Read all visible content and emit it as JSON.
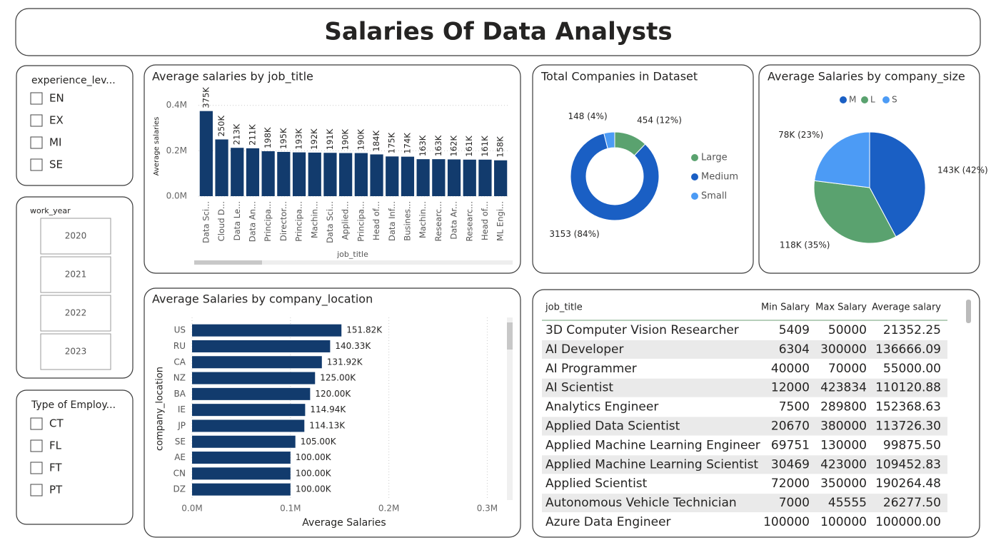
{
  "header": {
    "title": "Salaries Of Data Analysts"
  },
  "slicers": [
    {
      "title": "experience_lev...",
      "options": [
        "EN",
        "EX",
        "MI",
        "SE"
      ]
    },
    {
      "title": "work_year",
      "options": [
        "2020",
        "2021",
        "2022",
        "2023"
      ]
    },
    {
      "title": "Type of Employ...",
      "options": [
        "CT",
        "FL",
        "FT",
        "PT"
      ]
    }
  ],
  "chart_data": [
    {
      "type": "bar",
      "title": "Average salaries by job_title",
      "x_label": "job_title",
      "y_label": "Average salaries",
      "categories": [
        "Data Sci...",
        "Cloud D...",
        "Data Le...",
        "Data An...",
        "Principa...",
        "Director...",
        "Principa...",
        "Machin...",
        "Data Sci...",
        "Applied...",
        "Principa...",
        "Head of...",
        "Data Inf...",
        "Busines...",
        "Machin...",
        "Researc...",
        "Data Ar...",
        "Researc...",
        "Head of...",
        "ML Engi..."
      ],
      "values": [
        375000,
        250000,
        213000,
        211000,
        198000,
        195000,
        193000,
        192000,
        191000,
        190000,
        190000,
        184000,
        175000,
        174000,
        163000,
        163000,
        162000,
        161000,
        161000,
        158000
      ],
      "value_labels": [
        "375K",
        "250K",
        "213K",
        "211K",
        "198K",
        "195K",
        "193K",
        "192K",
        "191K",
        "190K",
        "190K",
        "184K",
        "175K",
        "174K",
        "163K",
        "163K",
        "162K",
        "161K",
        "161K",
        "158K"
      ],
      "color": "#123b6d",
      "ylim": [
        0,
        440000
      ],
      "yticks": [
        {
          "value": 0,
          "label": "0.0M"
        },
        {
          "value": 200000,
          "label": "0.2M"
        },
        {
          "value": 400000,
          "label": "0.4M"
        }
      ],
      "grid": true
    },
    {
      "type": "donut",
      "title": "Total Companies in Dataset",
      "categories": [
        "Large",
        "Medium",
        "Small"
      ],
      "values": [
        454,
        3153,
        148
      ],
      "value_labels": [
        "454 (12%)",
        "3153 (84%)",
        "148 (4%)"
      ],
      "colors": [
        "#5aa26f",
        "#1a5fc4",
        "#4c9bf5"
      ],
      "legend": "right"
    },
    {
      "type": "pie",
      "title": "Average Salaries by company_size",
      "categories": [
        "M",
        "L",
        "S"
      ],
      "values": [
        143000,
        118000,
        78000
      ],
      "value_labels": [
        "143K (42%)",
        "118K (35%)",
        "78K (23%)"
      ],
      "colors": [
        "#1a5fc4",
        "#5aa26f",
        "#4c9bf5"
      ],
      "legend": "top"
    },
    {
      "type": "hbar",
      "title": "Average Salaries by company_location",
      "x_label": "Average Salaries",
      "y_label": "company_location",
      "categories": [
        "US",
        "RU",
        "CA",
        "NZ",
        "BA",
        "IE",
        "JP",
        "SE",
        "AE",
        "CN",
        "DZ"
      ],
      "values": [
        151820,
        140330,
        131920,
        125000,
        120000,
        114940,
        114130,
        105000,
        100000,
        100000,
        100000
      ],
      "value_labels": [
        "151.82K",
        "140.33K",
        "131.92K",
        "125.00K",
        "120.00K",
        "114.94K",
        "114.13K",
        "105.00K",
        "100.00K",
        "100.00K",
        "100.00K"
      ],
      "color": "#123b6d",
      "xlim": [
        0,
        320000
      ],
      "xticks": [
        {
          "value": 0,
          "label": "0.0M"
        },
        {
          "value": 100000,
          "label": "0.1M"
        },
        {
          "value": 200000,
          "label": "0.2M"
        },
        {
          "value": 300000,
          "label": "0.3M"
        }
      ],
      "grid": true
    }
  ],
  "table": {
    "columns": [
      "job_title",
      "Min Salary",
      "Max Salary",
      "Average salary"
    ],
    "rows": [
      [
        "3D Computer Vision Researcher",
        "5409",
        "50000",
        "21352.25"
      ],
      [
        "AI Developer",
        "6304",
        "300000",
        "136666.09"
      ],
      [
        "AI Programmer",
        "40000",
        "70000",
        "55000.00"
      ],
      [
        "AI Scientist",
        "12000",
        "423834",
        "110120.88"
      ],
      [
        "Analytics Engineer",
        "7500",
        "289800",
        "152368.63"
      ],
      [
        "Applied Data Scientist",
        "20670",
        "380000",
        "113726.30"
      ],
      [
        "Applied Machine Learning Engineer",
        "69751",
        "130000",
        "99875.50"
      ],
      [
        "Applied Machine Learning Scientist",
        "30469",
        "423000",
        "109452.83"
      ],
      [
        "Applied Scientist",
        "72000",
        "350000",
        "190264.48"
      ],
      [
        "Autonomous Vehicle Technician",
        "7000",
        "45555",
        "26277.50"
      ],
      [
        "Azure Data Engineer",
        "100000",
        "100000",
        "100000.00"
      ]
    ]
  }
}
